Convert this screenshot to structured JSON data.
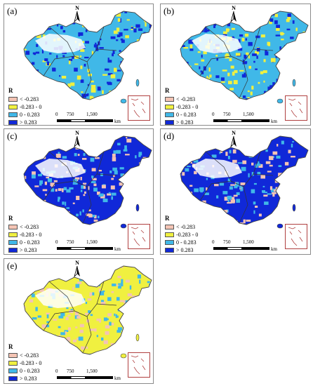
{
  "north_label": "N",
  "legend": {
    "title": "R",
    "classes": [
      {
        "label": "< -0.283",
        "color": "#f4c4b4"
      },
      {
        "label": "-0.283 - 0",
        "color": "#f0f040"
      },
      {
        "label": "0 - 0.283",
        "color": "#40b8e8"
      },
      {
        "label": "> 0.283",
        "color": "#1028d8"
      }
    ]
  },
  "scale_bar": {
    "ticks": [
      "0",
      "750",
      "1,500"
    ],
    "unit": "km"
  },
  "panels": [
    {
      "label": "(a)",
      "dominant_classes": [
        2,
        3,
        1
      ]
    },
    {
      "label": "(b)",
      "dominant_classes": [
        2,
        1,
        3
      ]
    },
    {
      "label": "(c)",
      "dominant_classes": [
        3,
        2,
        0
      ]
    },
    {
      "label": "(d)",
      "dominant_classes": [
        3,
        2,
        0
      ]
    },
    {
      "label": "(e)",
      "dominant_classes": [
        1,
        0,
        2
      ]
    }
  ]
}
